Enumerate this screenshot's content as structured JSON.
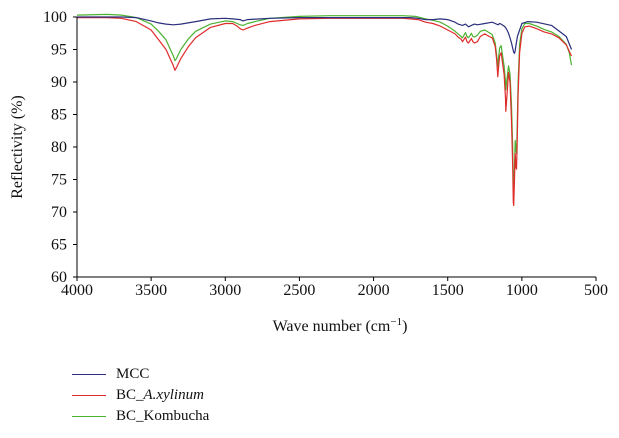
{
  "chart_data": {
    "type": "line",
    "title": "",
    "xlabel": "Wave number (cm",
    "xlabel_sup": "−1",
    "xlabel_close": ")",
    "ylabel": "Reflectivity (%)",
    "xlim": [
      4000,
      500
    ],
    "ylim": [
      60,
      100
    ],
    "xticks": [
      "4000",
      "3500",
      "3000",
      "2500",
      "2000",
      "1500",
      "1000",
      "500"
    ],
    "xtick_values": [
      4000,
      3500,
      3000,
      2500,
      2000,
      1500,
      1000,
      500
    ],
    "yticks": [
      "100",
      "95",
      "90",
      "85",
      "80",
      "75",
      "70",
      "65",
      "60"
    ],
    "ytick_values": [
      100,
      95,
      90,
      85,
      80,
      75,
      70,
      65,
      60
    ],
    "grid": false,
    "legend_position": "bottom-left",
    "series": [
      {
        "name": "MCC",
        "color": "#2b2f7c",
        "x": [
          4000,
          3700,
          3600,
          3500,
          3450,
          3400,
          3350,
          3300,
          3200,
          3100,
          3000,
          2950,
          2900,
          2880,
          2850,
          2700,
          2500,
          2300,
          2000,
          1800,
          1750,
          1700,
          1650,
          1600,
          1550,
          1500,
          1450,
          1430,
          1400,
          1380,
          1360,
          1340,
          1320,
          1300,
          1250,
          1200,
          1180,
          1160,
          1150,
          1140,
          1120,
          1110,
          1100,
          1090,
          1080,
          1070,
          1060,
          1055,
          1050,
          1045,
          1040,
          1030,
          1000,
          960,
          900,
          800,
          700,
          665
        ],
        "y": [
          100,
          100,
          99.9,
          99.4,
          99.1,
          98.9,
          98.8,
          98.9,
          99.3,
          99.7,
          99.8,
          99.7,
          99.6,
          99.4,
          99.6,
          99.8,
          99.9,
          99.9,
          99.9,
          99.9,
          99.9,
          99.8,
          99.6,
          99.6,
          99.7,
          99.6,
          99.2,
          98.9,
          98.7,
          98.9,
          98.5,
          98.7,
          98.9,
          98.8,
          99.0,
          99.2,
          99.0,
          98.8,
          99.0,
          98.9,
          98.6,
          98.4,
          98.0,
          97.5,
          96.8,
          96.0,
          95.0,
          94.6,
          94.4,
          94.8,
          95.6,
          97.0,
          99.0,
          99.3,
          99.2,
          98.7,
          97.0,
          95.0
        ]
      },
      {
        "name": "BC_A.xylinum",
        "name_prefix": "BC_",
        "name_italic": "A.xylinum",
        "color": "#e02b2b",
        "x": [
          4000,
          3800,
          3700,
          3600,
          3500,
          3450,
          3400,
          3370,
          3350,
          3340,
          3330,
          3300,
          3250,
          3200,
          3100,
          3000,
          2950,
          2920,
          2900,
          2880,
          2850,
          2800,
          2700,
          2500,
          2300,
          2000,
          1800,
          1700,
          1650,
          1600,
          1550,
          1500,
          1450,
          1430,
          1410,
          1400,
          1380,
          1370,
          1360,
          1340,
          1330,
          1320,
          1300,
          1280,
          1250,
          1220,
          1200,
          1180,
          1170,
          1162,
          1160,
          1150,
          1140,
          1120,
          1110,
          1108,
          1100,
          1090,
          1080,
          1070,
          1062,
          1058,
          1055,
          1050,
          1045,
          1040,
          1036,
          1032,
          1025,
          1015,
          1000,
          980,
          950,
          900,
          850,
          800,
          750,
          700,
          680,
          665
        ],
        "y": [
          99.9,
          99.9,
          99.8,
          99.3,
          98.0,
          96.5,
          95.0,
          93.5,
          92.5,
          91.8,
          92.2,
          93.6,
          95.4,
          96.8,
          98.4,
          99.0,
          99.0,
          98.6,
          98.2,
          98.0,
          98.3,
          98.7,
          99.3,
          99.7,
          99.8,
          99.8,
          99.8,
          99.6,
          99.2,
          99.0,
          98.6,
          98.0,
          97.4,
          96.9,
          96.6,
          96.2,
          96.9,
          96.2,
          96.0,
          96.7,
          96.2,
          96.0,
          96.2,
          97.0,
          97.4,
          97.0,
          96.8,
          95.5,
          93.5,
          90.8,
          91.5,
          94.0,
          94.5,
          91.2,
          87.5,
          85.5,
          88.0,
          91.5,
          90.0,
          84.0,
          77.0,
          71.5,
          71.0,
          74.5,
          79.0,
          77.0,
          76.6,
          80.0,
          88.0,
          94.5,
          97.5,
          98.5,
          98.6,
          98.2,
          97.7,
          97.4,
          96.8,
          95.7,
          94.7,
          94.0
        ]
      },
      {
        "name": "BC_Kombucha",
        "name_prefix": "BC_",
        "name_italic": "",
        "name_suffix": "Kombucha",
        "color": "#4cb231",
        "x": [
          4000,
          3800,
          3700,
          3600,
          3500,
          3450,
          3400,
          3370,
          3350,
          3340,
          3330,
          3300,
          3250,
          3200,
          3100,
          3000,
          2950,
          2920,
          2900,
          2880,
          2850,
          2800,
          2700,
          2500,
          2300,
          2000,
          1800,
          1720,
          1700,
          1650,
          1600,
          1550,
          1500,
          1450,
          1430,
          1410,
          1400,
          1380,
          1370,
          1360,
          1340,
          1330,
          1320,
          1300,
          1280,
          1250,
          1220,
          1200,
          1180,
          1170,
          1162,
          1160,
          1150,
          1140,
          1120,
          1110,
          1108,
          1100,
          1090,
          1080,
          1070,
          1062,
          1058,
          1055,
          1050,
          1045,
          1040,
          1036,
          1032,
          1025,
          1015,
          1000,
          980,
          950,
          900,
          850,
          800,
          750,
          700,
          680,
          665
        ],
        "y": [
          100.3,
          100.4,
          100.3,
          99.9,
          98.9,
          97.8,
          96.5,
          95.0,
          94.0,
          93.3,
          93.6,
          95.0,
          96.6,
          97.8,
          98.9,
          99.4,
          99.3,
          99.0,
          98.8,
          98.7,
          99.0,
          99.3,
          99.8,
          100.1,
          100.2,
          100.2,
          100.2,
          100.1,
          100.0,
          99.7,
          99.5,
          99.2,
          98.6,
          97.8,
          97.4,
          97.0,
          96.8,
          97.6,
          97.0,
          96.8,
          97.5,
          97.0,
          96.9,
          97.2,
          97.8,
          98.0,
          97.6,
          97.3,
          96.0,
          94.2,
          92.4,
          93.0,
          95.2,
          95.6,
          92.5,
          90.0,
          88.8,
          90.5,
          92.5,
          91.3,
          86.5,
          80.0,
          74.0,
          73.5,
          76.5,
          81.0,
          79.5,
          79.0,
          82.5,
          90.0,
          95.8,
          98.2,
          99.0,
          99.0,
          98.6,
          98.1,
          97.7,
          97.0,
          95.8,
          94.5,
          92.6
        ]
      }
    ]
  }
}
